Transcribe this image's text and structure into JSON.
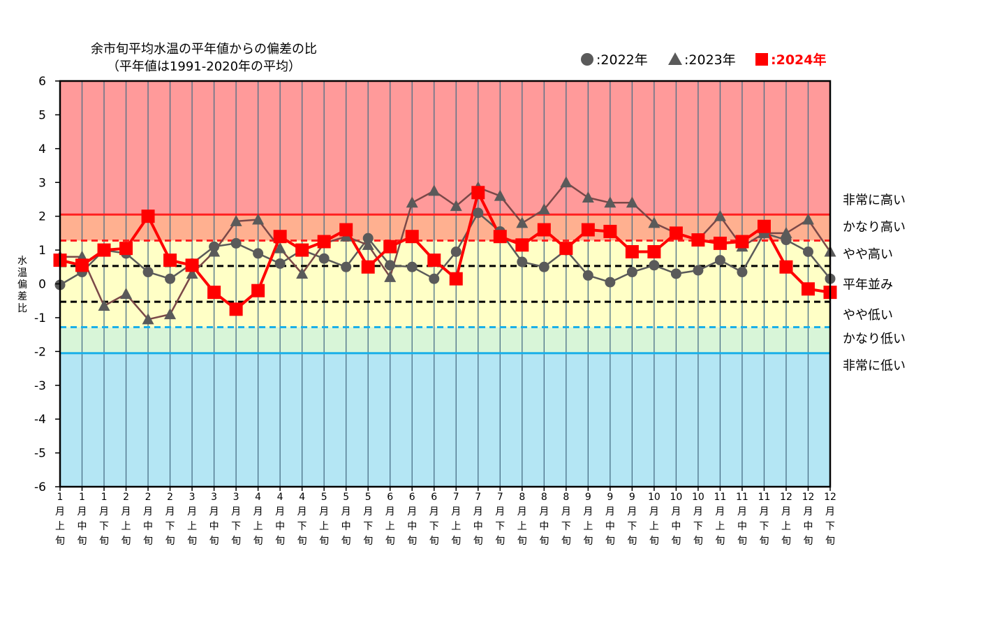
{
  "chart_data": {
    "type": "line",
    "title": "余市旬平均水温の平年値からの偏差の比",
    "subtitle": "（平年値は1991-2020年の平均）",
    "ylabel": [
      "水",
      "温",
      "偏",
      "差",
      "比"
    ],
    "ylim": [
      -6,
      6
    ],
    "yticks": [
      "6",
      "5",
      "4",
      "3",
      "2",
      "1",
      "0",
      "-1",
      "-2",
      "-3",
      "-4",
      "-5",
      "-6"
    ],
    "categories": [
      [
        "1",
        "月",
        "上",
        "旬"
      ],
      [
        "1",
        "月",
        "中",
        "旬"
      ],
      [
        "1",
        "月",
        "下",
        "旬"
      ],
      [
        "2",
        "月",
        "上",
        "旬"
      ],
      [
        "2",
        "月",
        "中",
        "旬"
      ],
      [
        "2",
        "月",
        "下",
        "旬"
      ],
      [
        "3",
        "月",
        "上",
        "旬"
      ],
      [
        "3",
        "月",
        "中",
        "旬"
      ],
      [
        "3",
        "月",
        "下",
        "旬"
      ],
      [
        "4",
        "月",
        "上",
        "旬"
      ],
      [
        "4",
        "月",
        "中",
        "旬"
      ],
      [
        "4",
        "月",
        "下",
        "旬"
      ],
      [
        "5",
        "月",
        "上",
        "旬"
      ],
      [
        "5",
        "月",
        "中",
        "旬"
      ],
      [
        "5",
        "月",
        "下",
        "旬"
      ],
      [
        "6",
        "月",
        "上",
        "旬"
      ],
      [
        "6",
        "月",
        "中",
        "旬"
      ],
      [
        "6",
        "月",
        "下",
        "旬"
      ],
      [
        "7",
        "月",
        "上",
        "旬"
      ],
      [
        "7",
        "月",
        "中",
        "旬"
      ],
      [
        "7",
        "月",
        "下",
        "旬"
      ],
      [
        "8",
        "月",
        "上",
        "旬"
      ],
      [
        "8",
        "月",
        "中",
        "旬"
      ],
      [
        "8",
        "月",
        "下",
        "旬"
      ],
      [
        "9",
        "月",
        "上",
        "旬"
      ],
      [
        "9",
        "月",
        "中",
        "旬"
      ],
      [
        "9",
        "月",
        "下",
        "旬"
      ],
      [
        "10",
        "月",
        "上",
        "旬"
      ],
      [
        "10",
        "月",
        "中",
        "旬"
      ],
      [
        "10",
        "月",
        "下",
        "旬"
      ],
      [
        "11",
        "月",
        "上",
        "旬"
      ],
      [
        "11",
        "月",
        "中",
        "旬"
      ],
      [
        "11",
        "月",
        "下",
        "旬"
      ],
      [
        "12",
        "月",
        "上",
        "旬"
      ],
      [
        "12",
        "月",
        "中",
        "旬"
      ],
      [
        "12",
        "月",
        "下",
        "旬"
      ]
    ],
    "bands": [
      {
        "from": 2.05,
        "to": 6,
        "color": "#ff9a9a"
      },
      {
        "from": 1.28,
        "to": 2.05,
        "color": "#ffb090"
      },
      {
        "from": 0.53,
        "to": 1.28,
        "color": "#ffffc6"
      },
      {
        "from": -0.53,
        "to": 0.53,
        "color": "#ffffc6"
      },
      {
        "from": -1.28,
        "to": -0.53,
        "color": "#ffffc6"
      },
      {
        "from": -2.05,
        "to": -1.28,
        "color": "#d8f5d8"
      },
      {
        "from": -6,
        "to": -2.05,
        "color": "#b4e6f4"
      }
    ],
    "thresholds": [
      {
        "value": 2.05,
        "color": "#ff2020",
        "dash": false
      },
      {
        "value": 1.28,
        "color": "#ff2020",
        "dash": true
      },
      {
        "value": 0.53,
        "color": "#000000",
        "dash": true
      },
      {
        "value": -0.53,
        "color": "#000000",
        "dash": true
      },
      {
        "value": -1.28,
        "color": "#1ab0e8",
        "dash": true
      },
      {
        "value": -2.05,
        "color": "#1ab0e8",
        "dash": false
      }
    ],
    "zone_labels": [
      {
        "text": "非常に高い",
        "value": 2.5
      },
      {
        "text": "かなり高い",
        "value": 1.7
      },
      {
        "text": "やや高い",
        "value": 0.9
      },
      {
        "text": "平年並み",
        "value": 0.0
      },
      {
        "text": "やや低い",
        "value": -0.9
      },
      {
        "text": "かなり低い",
        "value": -1.6
      },
      {
        "text": "非常に低い",
        "value": -2.4
      }
    ],
    "series": [
      {
        "name": "2022年",
        "legend_label": ":2022年",
        "marker": "circle",
        "color": "#5a5a5a",
        "values": [
          -0.03,
          0.35,
          1.0,
          0.9,
          0.35,
          0.15,
          0.6,
          1.1,
          1.2,
          0.9,
          0.6,
          1.0,
          0.75,
          0.5,
          1.35,
          0.55,
          0.5,
          0.15,
          0.95,
          2.1,
          1.55,
          0.65,
          0.5,
          1.0,
          0.25,
          0.05,
          0.35,
          0.55,
          0.3,
          0.4,
          0.7,
          0.35,
          1.5,
          1.3,
          0.95,
          0.15
        ]
      },
      {
        "name": "2023年",
        "legend_label": ":2023年",
        "marker": "triangle",
        "color": "#5a5a5a",
        "values": [
          0.8,
          0.8,
          -0.65,
          -0.3,
          -1.05,
          -0.9,
          0.3,
          0.95,
          1.85,
          1.9,
          1.05,
          0.3,
          1.2,
          1.4,
          1.15,
          0.2,
          2.4,
          2.75,
          2.3,
          2.85,
          2.6,
          1.8,
          2.2,
          3.0,
          2.55,
          2.4,
          2.4,
          1.8,
          1.5,
          1.3,
          2.0,
          1.1,
          1.5,
          1.5,
          1.9,
          0.95
        ]
      },
      {
        "name": "2024年",
        "legend_label": ":2024年",
        "marker": "square",
        "color": "#ff0000",
        "values": [
          0.7,
          0.55,
          1.0,
          1.05,
          2.0,
          0.7,
          0.55,
          -0.25,
          -0.75,
          -0.2,
          1.4,
          1.0,
          1.25,
          1.6,
          0.5,
          1.1,
          1.4,
          0.7,
          0.15,
          2.7,
          1.4,
          1.15,
          1.6,
          1.05,
          1.6,
          1.55,
          0.95,
          0.95,
          1.5,
          1.3,
          1.2,
          1.25,
          1.7,
          0.5,
          -0.15,
          -0.25
        ]
      }
    ]
  }
}
